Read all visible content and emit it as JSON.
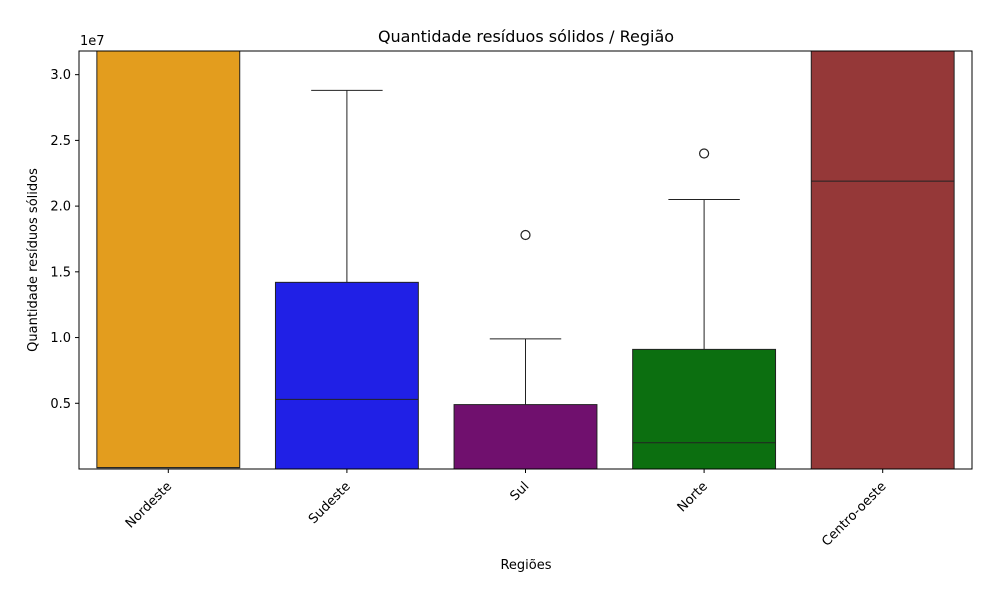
{
  "chart_data": {
    "type": "box",
    "title": "Quantidade resíduos sólidos / Região",
    "xlabel": "Regiões",
    "ylabel": "Quantidade resíduos sólidos",
    "y_offset_label": "1e7",
    "ylim": [
      0,
      3.18
    ],
    "y_ticks": [
      0.5,
      1.0,
      1.5,
      2.0,
      2.5,
      3.0
    ],
    "y_tick_labels": [
      "0.5",
      "1.0",
      "1.5",
      "2.0",
      "2.5",
      "3.0"
    ],
    "grid": false,
    "categories": [
      "Nordeste",
      "Sudeste",
      "Sul",
      "Norte",
      "Centro-oeste"
    ],
    "colors": [
      "#e39d1e",
      "#2020e6",
      "#70106e",
      "#0c6f10",
      "#953838"
    ],
    "boxes": [
      {
        "category": "Nordeste",
        "q1": 0.01,
        "median": 0.01,
        "q3": 3.18,
        "whisker_low": null,
        "whisker_high": null,
        "outliers": []
      },
      {
        "category": "Sudeste",
        "q1": 0.0,
        "median": 0.53,
        "q3": 1.42,
        "whisker_low": 0.0,
        "whisker_high": 2.88,
        "outliers": []
      },
      {
        "category": "Sul",
        "q1": 0.0,
        "median": 0.0,
        "q3": 0.49,
        "whisker_low": 0.0,
        "whisker_high": 0.99,
        "outliers": [
          1.78
        ]
      },
      {
        "category": "Norte",
        "q1": 0.0,
        "median": 0.2,
        "q3": 0.91,
        "whisker_low": 0.0,
        "whisker_high": 2.05,
        "outliers": [
          2.4
        ]
      },
      {
        "category": "Centro-oeste",
        "q1": 0.0,
        "median": 2.19,
        "q3": 3.18,
        "whisker_low": null,
        "whisker_high": null,
        "outliers": []
      }
    ]
  }
}
